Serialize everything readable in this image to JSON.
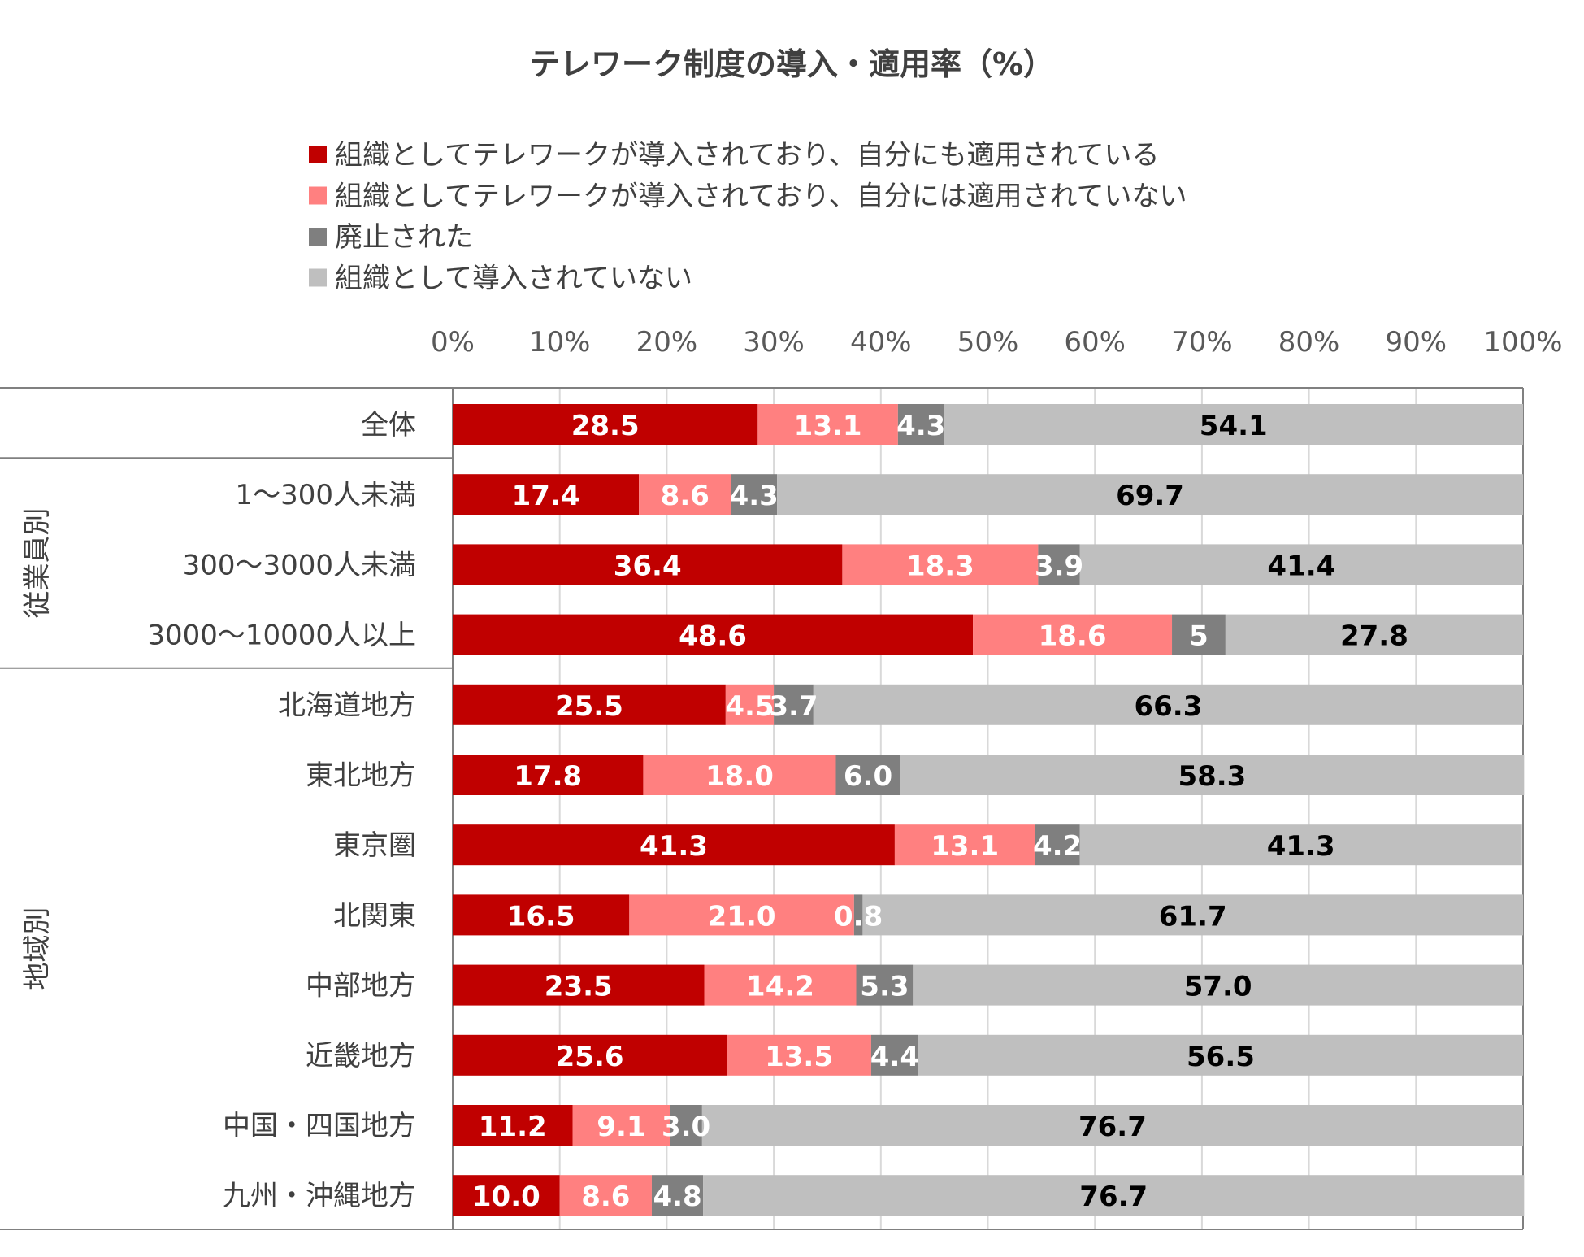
{
  "chart_data": {
    "type": "bar",
    "orientation": "horizontal",
    "stacked": "percent",
    "title": "テレワーク制度の導入・適用率（%）",
    "categories": [
      "全体",
      "1〜300人未満",
      "300〜3000人未満",
      "3000〜10000人以上",
      "北海道地方",
      "東北地方",
      "東京圏",
      "北関東",
      "中部地方",
      "近畿地方",
      "中国・四国地方",
      "九州・沖縄地方"
    ],
    "groups": [
      {
        "label": "従業員別",
        "categories": [
          "1〜300人未満",
          "300〜3000人未満",
          "3000〜10000人以上"
        ]
      },
      {
        "label": "地域別",
        "categories": [
          "北海道地方",
          "東北地方",
          "東京圏",
          "北関東",
          "中部地方",
          "近畿地方",
          "中国・四国地方",
          "九州・沖縄地方"
        ]
      }
    ],
    "series": [
      {
        "name": "組織としてテレワークが導入されており、自分にも適用されている",
        "color": "#C00000",
        "label_color": "#FFFFFF",
        "values": [
          28.5,
          17.4,
          36.4,
          48.6,
          25.5,
          17.8,
          41.3,
          16.5,
          23.5,
          25.6,
          11.2,
          10.0
        ],
        "labels": [
          "28.5",
          "17.4",
          "36.4",
          "48.6",
          "25.5",
          "17.8",
          "41.3",
          "16.5",
          "23.5",
          "25.6",
          "11.2",
          "10.0"
        ]
      },
      {
        "name": "組織としてテレワークが導入されており、自分には適用されていない",
        "color": "#FF8080",
        "label_color": "#FFFFFF",
        "values": [
          13.1,
          8.6,
          18.3,
          18.6,
          4.5,
          18.0,
          13.1,
          21.0,
          14.2,
          13.5,
          9.1,
          8.6
        ],
        "labels": [
          "13.1",
          "8.6",
          "18.3",
          "18.6",
          "4.5",
          "18.0",
          "13.1",
          "21.0",
          "14.2",
          "13.5",
          "9.1",
          "8.6"
        ]
      },
      {
        "name": "廃止された",
        "color": "#7F7F7F",
        "label_color": "#FFFFFF",
        "values": [
          4.3,
          4.3,
          3.9,
          5,
          3.7,
          6.0,
          4.2,
          0.8,
          5.3,
          4.4,
          3.0,
          4.8
        ],
        "labels": [
          "4.3",
          "4.3",
          "3.9",
          "5",
          "3.7",
          "6.0",
          "4.2",
          "0.8",
          "5.3",
          "4.4",
          "3.0",
          "4.8"
        ]
      },
      {
        "name": "組織として導入されていない",
        "color": "#BFBFBF",
        "label_color": "#000000",
        "values": [
          54.1,
          69.7,
          41.4,
          27.8,
          66.3,
          58.3,
          41.3,
          61.7,
          57.0,
          56.5,
          76.7,
          76.7
        ],
        "labels": [
          "54.1",
          "69.7",
          "41.4",
          "27.8",
          "66.3",
          "58.3",
          "41.3",
          "61.7",
          "57.0",
          "56.5",
          "76.7",
          "76.7"
        ]
      }
    ],
    "x_ticks": [
      "0%",
      "10%",
      "20%",
      "30%",
      "40%",
      "50%",
      "60%",
      "70%",
      "80%",
      "90%",
      "100%"
    ],
    "xlim": [
      0,
      100
    ],
    "grid": true,
    "legend_position": "top"
  }
}
